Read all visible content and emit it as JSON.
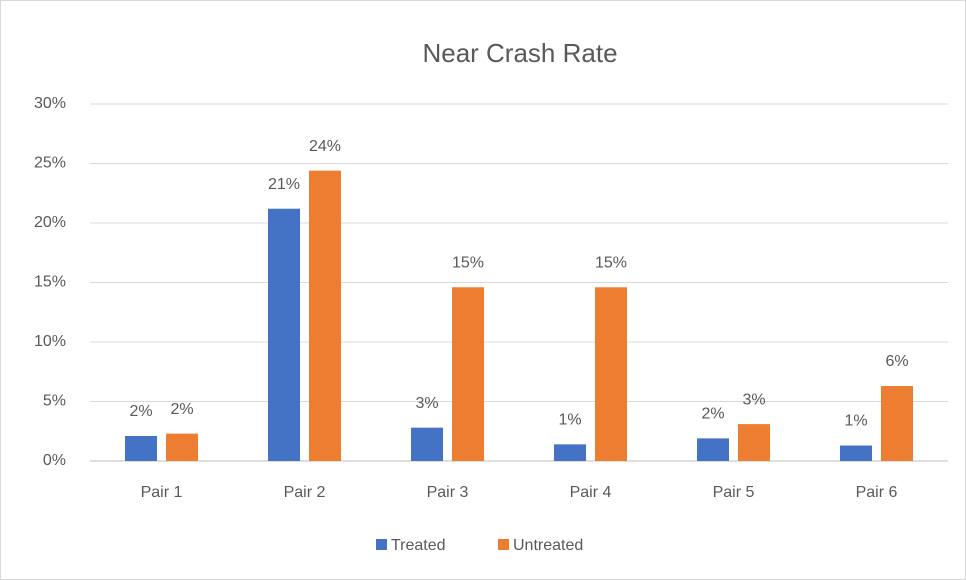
{
  "chart_data": {
    "type": "bar",
    "title": "Near Crash Rate",
    "categories": [
      "Pair 1",
      "Pair 2",
      "Pair 3",
      "Pair 4",
      "Pair 5",
      "Pair 6"
    ],
    "series": [
      {
        "name": "Treated",
        "color": "#4472c4",
        "values": [
          2.1,
          21.2,
          2.8,
          1.4,
          1.9,
          1.3
        ],
        "value_labels": [
          "2%",
          "21%",
          "3%",
          "1%",
          "2%",
          "1%"
        ]
      },
      {
        "name": "Untreated",
        "color": "#ed7d31",
        "values": [
          2.3,
          24.4,
          14.6,
          14.6,
          3.1,
          6.3
        ],
        "value_labels": [
          "2%",
          "24%",
          "15%",
          "15%",
          "3%",
          "6%"
        ]
      }
    ],
    "ylim": [
      0,
      30
    ],
    "yticks": [
      {
        "value": 0,
        "label": "0%"
      },
      {
        "value": 5,
        "label": "5%"
      },
      {
        "value": 10,
        "label": "10%"
      },
      {
        "value": 15,
        "label": "15%"
      },
      {
        "value": 20,
        "label": "20%"
      },
      {
        "value": 25,
        "label": "25%"
      },
      {
        "value": 30,
        "label": "30%"
      }
    ],
    "grid": true,
    "legend": "bottom"
  }
}
